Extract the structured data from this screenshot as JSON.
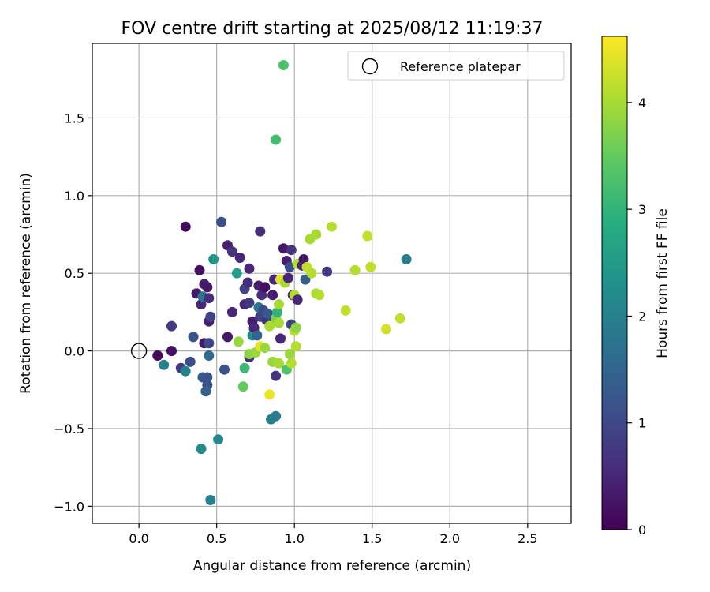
{
  "chart_data": {
    "type": "scatter",
    "title": "FOV centre drift starting at 2025/08/12 11:19:37",
    "xlabel": "Angular distance from reference (arcmin)",
    "ylabel": "Rotation from reference (arcmin)",
    "xlim": [
      -0.3,
      2.78
    ],
    "ylim": [
      -1.11,
      1.98
    ],
    "xticks": [
      0.0,
      0.5,
      1.0,
      1.5,
      2.0,
      2.5
    ],
    "xtick_labels": [
      "0.0",
      "0.5",
      "1.0",
      "1.5",
      "2.0",
      "2.5"
    ],
    "yticks": [
      -1.0,
      -0.5,
      0.0,
      0.5,
      1.0,
      1.5
    ],
    "ytick_labels": [
      "−1.0",
      "−0.5",
      "0.0",
      "0.5",
      "1.0",
      "1.5"
    ],
    "grid": true,
    "legend": {
      "position": "top-right",
      "entries": [
        "Reference platepar"
      ]
    },
    "reference_point": {
      "x": 0.0,
      "y": 0.0,
      "marker": "open-circle"
    },
    "colorbar": {
      "label": "Hours from first FF file",
      "colormap": "viridis",
      "range": [
        0,
        4.62
      ],
      "ticks": [
        0,
        1,
        2,
        3,
        4
      ],
      "tick_labels": [
        "0",
        "1",
        "2",
        "3",
        "4"
      ]
    },
    "points": [
      {
        "x": 0.12,
        "y": -0.03,
        "hours": 0.1
      },
      {
        "x": 0.21,
        "y": 0.0,
        "hours": 0.2
      },
      {
        "x": 0.21,
        "y": 0.16,
        "hours": 0.8
      },
      {
        "x": 0.16,
        "y": -0.09,
        "hours": 2.0
      },
      {
        "x": 0.27,
        "y": -0.11,
        "hours": 0.8
      },
      {
        "x": 0.3,
        "y": -0.13,
        "hours": 2.0
      },
      {
        "x": 0.33,
        "y": -0.07,
        "hours": 1.1
      },
      {
        "x": 0.35,
        "y": 0.09,
        "hours": 1.2
      },
      {
        "x": 0.3,
        "y": 0.8,
        "hours": 0.1
      },
      {
        "x": 0.37,
        "y": 0.37,
        "hours": 0.3
      },
      {
        "x": 0.39,
        "y": 0.52,
        "hours": 0.2
      },
      {
        "x": 0.4,
        "y": 0.3,
        "hours": 0.5
      },
      {
        "x": 0.41,
        "y": 0.35,
        "hours": 1.8
      },
      {
        "x": 0.42,
        "y": 0.43,
        "hours": 0.4
      },
      {
        "x": 0.44,
        "y": 0.41,
        "hours": 0.3
      },
      {
        "x": 0.45,
        "y": 0.34,
        "hours": 0.6
      },
      {
        "x": 0.45,
        "y": 0.19,
        "hours": 0.4
      },
      {
        "x": 0.46,
        "y": 0.22,
        "hours": 0.9
      },
      {
        "x": 0.42,
        "y": 0.05,
        "hours": 0.3
      },
      {
        "x": 0.45,
        "y": 0.05,
        "hours": 1.0
      },
      {
        "x": 0.41,
        "y": -0.17,
        "hours": 1.3
      },
      {
        "x": 0.44,
        "y": -0.17,
        "hours": 1.2
      },
      {
        "x": 0.45,
        "y": -0.03,
        "hours": 1.6
      },
      {
        "x": 0.44,
        "y": -0.22,
        "hours": 1.2
      },
      {
        "x": 0.43,
        "y": -0.26,
        "hours": 1.4
      },
      {
        "x": 0.4,
        "y": -0.63,
        "hours": 2.2
      },
      {
        "x": 0.51,
        "y": -0.57,
        "hours": 2.1
      },
      {
        "x": 0.46,
        "y": -0.96,
        "hours": 2.0
      },
      {
        "x": 0.48,
        "y": 0.59,
        "hours": 2.4
      },
      {
        "x": 0.53,
        "y": 0.83,
        "hours": 1.1
      },
      {
        "x": 0.55,
        "y": -0.12,
        "hours": 1.2
      },
      {
        "x": 0.57,
        "y": 0.09,
        "hours": 0.3
      },
      {
        "x": 0.57,
        "y": 0.68,
        "hours": 0.4
      },
      {
        "x": 0.6,
        "y": 0.64,
        "hours": 0.7
      },
      {
        "x": 0.6,
        "y": 0.25,
        "hours": 0.5
      },
      {
        "x": 0.63,
        "y": 0.5,
        "hours": 2.5
      },
      {
        "x": 0.65,
        "y": 0.6,
        "hours": 0.5
      },
      {
        "x": 0.64,
        "y": 0.06,
        "hours": 3.9
      },
      {
        "x": 0.67,
        "y": -0.23,
        "hours": 3.5
      },
      {
        "x": 0.68,
        "y": -0.11,
        "hours": 3.1
      },
      {
        "x": 0.68,
        "y": 0.4,
        "hours": 0.9
      },
      {
        "x": 0.68,
        "y": 0.3,
        "hours": 0.5
      },
      {
        "x": 0.7,
        "y": 0.44,
        "hours": 0.6
      },
      {
        "x": 0.71,
        "y": 0.31,
        "hours": 0.8
      },
      {
        "x": 0.71,
        "y": 0.53,
        "hours": 0.5
      },
      {
        "x": 0.71,
        "y": -0.04,
        "hours": 0.6
      },
      {
        "x": 0.71,
        "y": -0.02,
        "hours": 3.8
      },
      {
        "x": 0.73,
        "y": 0.19,
        "hours": 0.4
      },
      {
        "x": 0.73,
        "y": 0.1,
        "hours": 2.2
      },
      {
        "x": 0.74,
        "y": 0.14,
        "hours": 2.7
      },
      {
        "x": 0.74,
        "y": 0.15,
        "hours": 0.5
      },
      {
        "x": 0.75,
        "y": -0.01,
        "hours": 3.9
      },
      {
        "x": 0.76,
        "y": 0.1,
        "hours": 1.5
      },
      {
        "x": 0.77,
        "y": 0.28,
        "hours": 1.8
      },
      {
        "x": 0.78,
        "y": 0.77,
        "hours": 0.6
      },
      {
        "x": 0.77,
        "y": 0.42,
        "hours": 0.4
      },
      {
        "x": 0.78,
        "y": 0.22,
        "hours": 0.9
      },
      {
        "x": 0.78,
        "y": 0.03,
        "hours": 4.4
      },
      {
        "x": 0.79,
        "y": 0.36,
        "hours": 0.6
      },
      {
        "x": 0.8,
        "y": 0.26,
        "hours": 1.0
      },
      {
        "x": 0.81,
        "y": 0.41,
        "hours": 0.2
      },
      {
        "x": 0.81,
        "y": 0.02,
        "hours": 3.9
      },
      {
        "x": 0.82,
        "y": 0.2,
        "hours": 0.7
      },
      {
        "x": 0.83,
        "y": 0.24,
        "hours": 1.3
      },
      {
        "x": 0.84,
        "y": 0.16,
        "hours": 4.0
      },
      {
        "x": 0.84,
        "y": -0.28,
        "hours": 4.5
      },
      {
        "x": 0.85,
        "y": -0.44,
        "hours": 2.0
      },
      {
        "x": 0.86,
        "y": -0.07,
        "hours": 3.9
      },
      {
        "x": 0.86,
        "y": 0.36,
        "hours": 0.4
      },
      {
        "x": 0.87,
        "y": 0.46,
        "hours": 0.5
      },
      {
        "x": 0.88,
        "y": 1.36,
        "hours": 3.2
      },
      {
        "x": 0.88,
        "y": -0.42,
        "hours": 1.9
      },
      {
        "x": 0.88,
        "y": -0.16,
        "hours": 0.7
      },
      {
        "x": 0.88,
        "y": 0.21,
        "hours": 3.7
      },
      {
        "x": 0.89,
        "y": 0.25,
        "hours": 3.0
      },
      {
        "x": 0.9,
        "y": 0.18,
        "hours": 4.0
      },
      {
        "x": 0.9,
        "y": 0.3,
        "hours": 4.0
      },
      {
        "x": 0.9,
        "y": -0.08,
        "hours": 4.0
      },
      {
        "x": 0.91,
        "y": 0.08,
        "hours": 0.5
      },
      {
        "x": 0.91,
        "y": 0.46,
        "hours": 4.4
      },
      {
        "x": 0.93,
        "y": 0.66,
        "hours": 0.3
      },
      {
        "x": 0.93,
        "y": 1.84,
        "hours": 3.3
      },
      {
        "x": 0.94,
        "y": 0.44,
        "hours": 4.0
      },
      {
        "x": 0.95,
        "y": 0.58,
        "hours": 0.4
      },
      {
        "x": 0.95,
        "y": -0.12,
        "hours": 3.3
      },
      {
        "x": 0.96,
        "y": 0.47,
        "hours": 0.5
      },
      {
        "x": 0.97,
        "y": -0.02,
        "hours": 3.9
      },
      {
        "x": 0.97,
        "y": 0.54,
        "hours": 1.1
      },
      {
        "x": 0.98,
        "y": 0.17,
        "hours": 0.9
      },
      {
        "x": 0.98,
        "y": -0.08,
        "hours": 4.1
      },
      {
        "x": 0.98,
        "y": 0.65,
        "hours": 0.7
      },
      {
        "x": 0.99,
        "y": 0.36,
        "hours": 0.5
      },
      {
        "x": 1.0,
        "y": 0.36,
        "hours": 4.1
      },
      {
        "x": 1.0,
        "y": 0.13,
        "hours": 4.1
      },
      {
        "x": 1.01,
        "y": 0.15,
        "hours": 3.8
      },
      {
        "x": 1.01,
        "y": 0.03,
        "hours": 4.1
      },
      {
        "x": 1.02,
        "y": 0.33,
        "hours": 0.5
      },
      {
        "x": 1.02,
        "y": 0.56,
        "hours": 4.1
      },
      {
        "x": 1.05,
        "y": 0.55,
        "hours": 0.5
      },
      {
        "x": 1.06,
        "y": 0.59,
        "hours": 0.3
      },
      {
        "x": 1.07,
        "y": 0.46,
        "hours": 1.4
      },
      {
        "x": 1.08,
        "y": 0.54,
        "hours": 4.2
      },
      {
        "x": 1.1,
        "y": 0.72,
        "hours": 4.0
      },
      {
        "x": 1.11,
        "y": 0.5,
        "hours": 4.1
      },
      {
        "x": 1.14,
        "y": 0.75,
        "hours": 4.0
      },
      {
        "x": 1.14,
        "y": 0.37,
        "hours": 4.0
      },
      {
        "x": 1.16,
        "y": 0.36,
        "hours": 4.1
      },
      {
        "x": 1.21,
        "y": 0.51,
        "hours": 0.8
      },
      {
        "x": 1.24,
        "y": 0.8,
        "hours": 4.1
      },
      {
        "x": 1.33,
        "y": 0.26,
        "hours": 4.2
      },
      {
        "x": 1.39,
        "y": 0.52,
        "hours": 4.1
      },
      {
        "x": 1.47,
        "y": 0.74,
        "hours": 4.2
      },
      {
        "x": 1.49,
        "y": 0.54,
        "hours": 4.2
      },
      {
        "x": 1.59,
        "y": 0.14,
        "hours": 4.3
      },
      {
        "x": 1.68,
        "y": 0.21,
        "hours": 4.2
      },
      {
        "x": 1.72,
        "y": 0.59,
        "hours": 1.9
      }
    ]
  }
}
